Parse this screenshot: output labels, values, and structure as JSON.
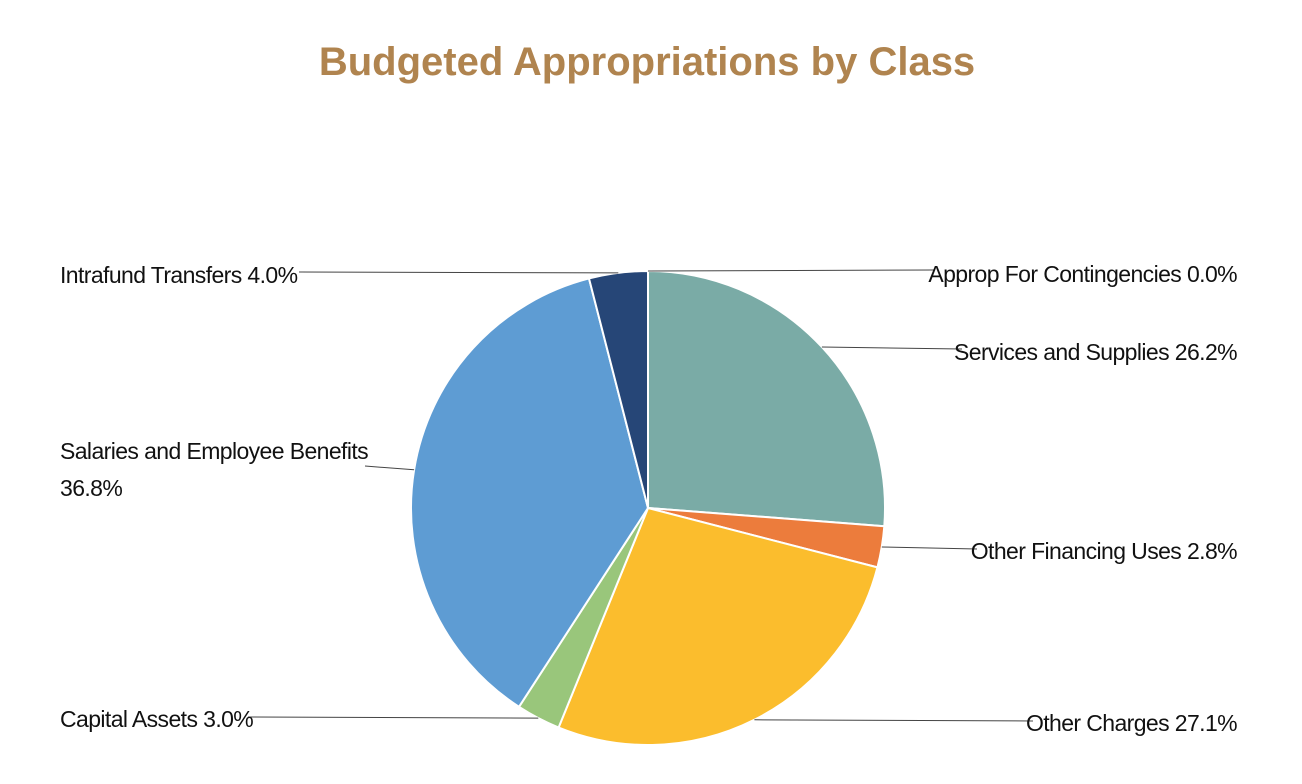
{
  "chart_data": {
    "type": "pie",
    "title": "Budgeted Appropriations by Class",
    "title_color": "#B0844F",
    "slices": [
      {
        "name": "Approp For Contingencies",
        "value": 0.0,
        "label": "Approp For Contingencies 0.0%",
        "color": "#D8D8D8"
      },
      {
        "name": "Services and Supplies",
        "value": 26.2,
        "label": "Services and Supplies 26.2%",
        "color": "#7AABA6"
      },
      {
        "name": "Other Financing Uses",
        "value": 2.8,
        "label": "Other Financing Uses 2.8%",
        "color": "#EC7C3C"
      },
      {
        "name": "Other Charges",
        "value": 27.1,
        "label": "Other Charges 27.1%",
        "color": "#FBBD2D"
      },
      {
        "name": "Capital Assets",
        "value": 3.0,
        "label": "Capital Assets 3.0%",
        "color": "#99C67B"
      },
      {
        "name": "Salaries and Employee Benefits",
        "value": 36.8,
        "label_lines": [
          "Salaries and Employee Benefits",
          "36.8%"
        ],
        "color": "#5E9CD3"
      },
      {
        "name": "Intrafund Transfers",
        "value": 4.0,
        "label": "Intrafund Transfers 4.0%",
        "color": "#264677"
      }
    ]
  }
}
